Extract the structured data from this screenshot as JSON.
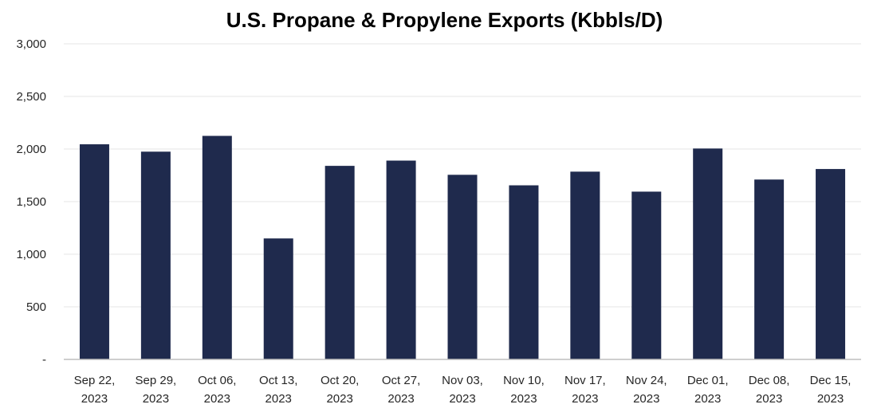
{
  "chart_data": {
    "type": "bar",
    "title": "U.S. Propane & Propylene Exports (Kbbls/D)",
    "xlabel": "",
    "ylabel": "",
    "categories": [
      [
        "Sep 22,",
        "2023"
      ],
      [
        "Sep 29,",
        "2023"
      ],
      [
        "Oct 06,",
        "2023"
      ],
      [
        "Oct 13,",
        "2023"
      ],
      [
        "Oct 20,",
        "2023"
      ],
      [
        "Oct 27,",
        "2023"
      ],
      [
        "Nov 03,",
        "2023"
      ],
      [
        "Nov 10,",
        "2023"
      ],
      [
        "Nov 17,",
        "2023"
      ],
      [
        "Nov 24,",
        "2023"
      ],
      [
        "Dec 01,",
        "2023"
      ],
      [
        "Dec 08,",
        "2023"
      ],
      [
        "Dec 15,",
        "2023"
      ]
    ],
    "values": [
      2045,
      1975,
      2125,
      1150,
      1840,
      1890,
      1755,
      1655,
      1785,
      1595,
      2005,
      1710,
      1810
    ],
    "ylim": [
      0,
      3000
    ],
    "yticks": [
      0,
      500,
      1000,
      1500,
      2000,
      2500,
      3000
    ],
    "ytick_labels": [
      "-",
      "500",
      "1,000",
      "1,500",
      "2,000",
      "2,500",
      "3,000"
    ],
    "grid": true,
    "legend": "none",
    "bar_color": "#1f2a4d",
    "grid_color": "#e6e6e6",
    "axis_color": "#bfbfbf"
  }
}
